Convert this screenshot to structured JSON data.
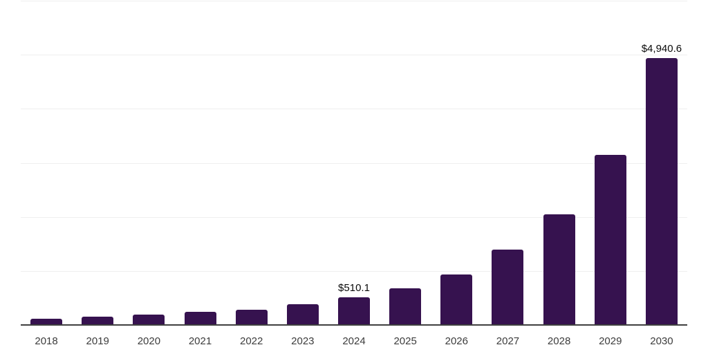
{
  "chart_data": {
    "type": "bar",
    "title": "",
    "xlabel": "",
    "ylabel": "",
    "categories": [
      "2018",
      "2019",
      "2020",
      "2021",
      "2022",
      "2023",
      "2024",
      "2025",
      "2026",
      "2027",
      "2028",
      "2029",
      "2030"
    ],
    "values": [
      110,
      160,
      190,
      240,
      285,
      390,
      510.1,
      680,
      940,
      1390,
      2050,
      3150,
      4940.6
    ],
    "value_labels": {
      "2024": "$510.1",
      "2030": "$4,940.6"
    },
    "ylim": [
      0,
      6000
    ],
    "gridline_interval": 1000,
    "grid": true,
    "legend": "none",
    "axis_tick_labels_y": "none",
    "colors": {
      "bar": "#36124F",
      "axis_line": "#3f3f3f",
      "gridline": "#efefef",
      "tick_label": "#3c3c3c",
      "value_label": "#0a0a0a",
      "background": "#ffffff"
    }
  }
}
